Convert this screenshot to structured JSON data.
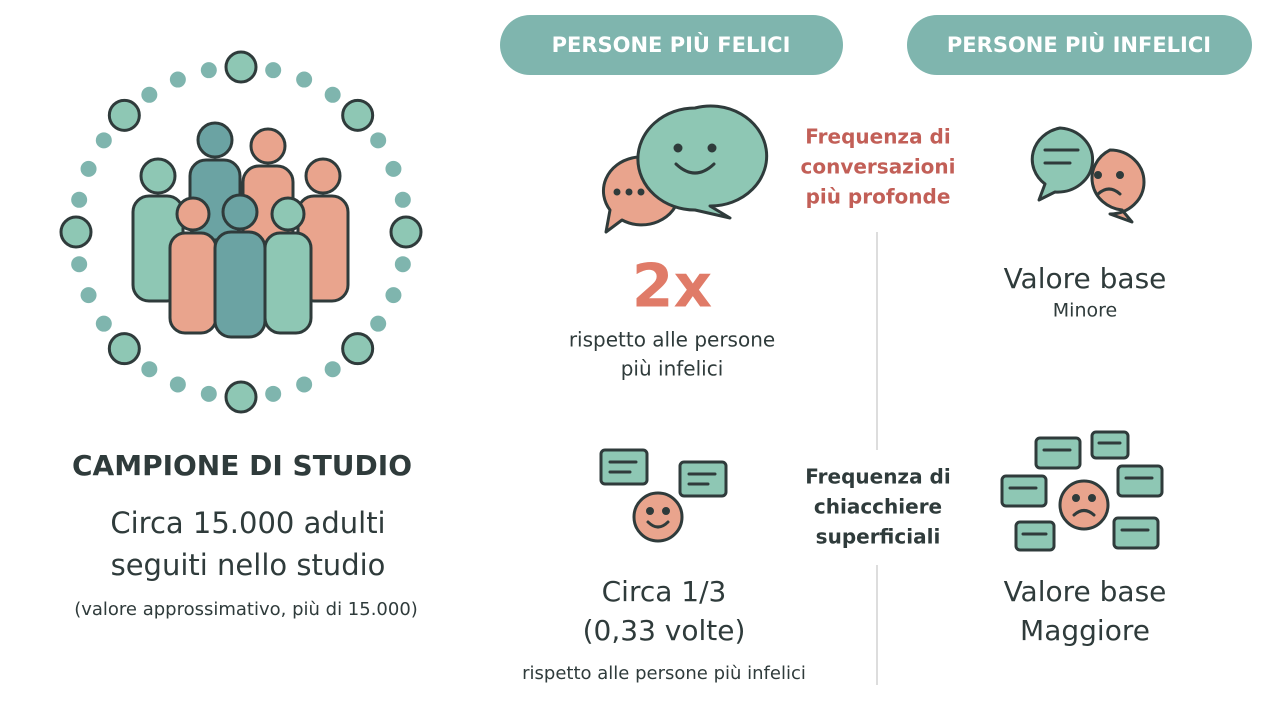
{
  "header": {
    "happier": "PERSONE PIÙ FELICI",
    "unhappier": "PERSONE PIÙ INFELICI"
  },
  "sample": {
    "title": "CAMPIONE DI STUDIO",
    "lines": [
      "Circa 15.000 adulti",
      "seguiti nello studio"
    ],
    "note": "(valore approssimativo, più di 15.000)"
  },
  "deep_talk": {
    "label": [
      "Frequenza di",
      "conversazioni",
      "più profonde"
    ],
    "happier": {
      "value": "2x",
      "note": [
        "rispetto alle persone",
        "più infelici"
      ]
    },
    "unhappier": {
      "value": "Valore base",
      "note": "Minore"
    }
  },
  "small_talk": {
    "label": [
      "Frequenza di",
      "chiacchiere",
      "superficiali"
    ],
    "happier": {
      "value": [
        "Circa 1/3",
        "(0,33 volte)"
      ],
      "note": "rispetto alle persone più infelici"
    },
    "unhappier": {
      "value": [
        "Valore base",
        "Maggiore"
      ]
    }
  }
}
